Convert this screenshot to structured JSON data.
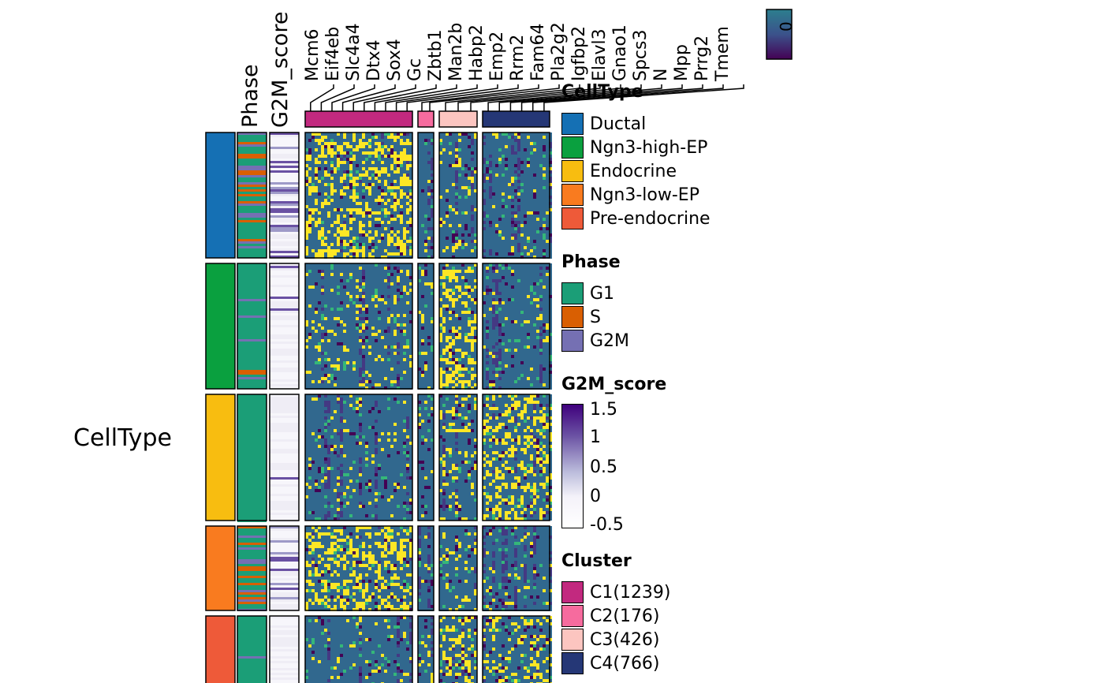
{
  "chart_data": {
    "type": "heatmap",
    "row_annotation_title": "CellType",
    "annotation_labels": [
      "Phase",
      "G2M_score"
    ],
    "columns": [
      "Mcm6",
      "Eif4eb",
      "Slc4a4",
      "Dtx4",
      "Sox4",
      "Gc",
      "Zbtb1",
      "Man2b",
      "Habp2",
      "Emp2",
      "Rrm2",
      "Fam64",
      "Pla2g2",
      "Igfbp2",
      "Elavl3",
      "Gnao1",
      "Spcs3",
      "N",
      "Mpp",
      "Prrg2",
      "Tmem"
    ],
    "column_clusters": [
      {
        "name": "C1(1239)",
        "color": "#c2297f",
        "labels": 10
      },
      {
        "name": "C2(176)",
        "color": "#f66b9e",
        "labels": 2
      },
      {
        "name": "C3(426)",
        "color": "#fcc5c0",
        "labels": 3
      },
      {
        "name": "C4(766)",
        "color": "#253776",
        "labels": 6
      }
    ],
    "row_groups": [
      {
        "name": "Ductal",
        "color": "#1570b4"
      },
      {
        "name": "Ngn3-high-EP",
        "color": "#0aa03f"
      },
      {
        "name": "Endocrine",
        "color": "#f8bd10"
      },
      {
        "name": "Ngn3-low-EP",
        "color": "#f97b1f"
      },
      {
        "name": "Pre-endocrine",
        "color": "#ee5a39"
      }
    ],
    "expression_colorbar": {
      "ticks": [
        "0"
      ],
      "colors": [
        "#440154",
        "#31688e",
        "#2c7f8e"
      ]
    },
    "legends": {
      "celltype": {
        "title": "CellType",
        "items": [
          "Ductal",
          "Ngn3-high-EP",
          "Endocrine",
          "Ngn3-low-EP",
          "Pre-endocrine"
        ]
      },
      "phase": {
        "title": "Phase",
        "items": [
          {
            "label": "G1",
            "color": "#1b9e77"
          },
          {
            "label": "S",
            "color": "#d95f02"
          },
          {
            "label": "G2M",
            "color": "#7570b3"
          }
        ]
      },
      "g2m": {
        "title": "G2M_score",
        "ticks": [
          "1.5",
          "1",
          "0.5",
          "0",
          "-0.5"
        ],
        "colors": [
          "#3f007d",
          "#f4f2f9",
          "#ffffff"
        ]
      },
      "cluster": {
        "title": "Cluster",
        "items": [
          "C1(1239)",
          "C2(176)",
          "C3(426)",
          "C4(766)"
        ]
      }
    }
  }
}
